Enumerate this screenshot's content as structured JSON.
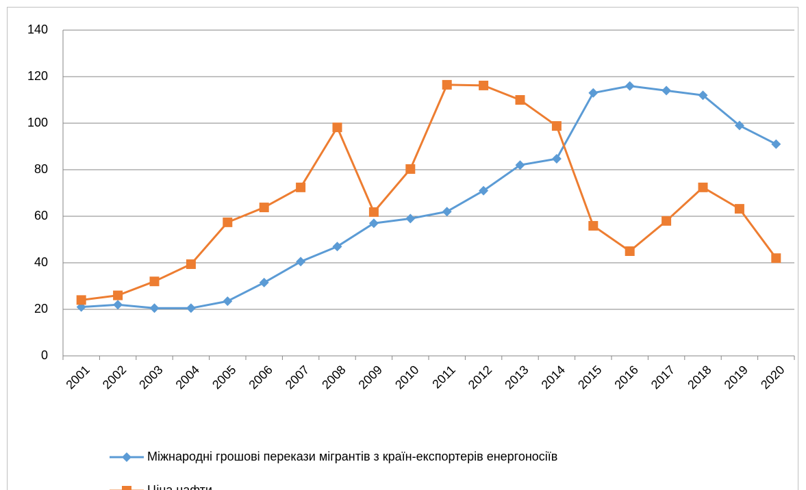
{
  "chart_data": {
    "type": "line",
    "categories": [
      "2001",
      "2002",
      "2003",
      "2004",
      "2005",
      "2006",
      "2007",
      "2008",
      "2009",
      "2010",
      "2011",
      "2012",
      "2013",
      "2014",
      "2015",
      "2016",
      "2017",
      "2018",
      "2019",
      "2020"
    ],
    "series": [
      {
        "name": "Міжнародні грошові перекази мігрантів з країн-експортерів енергоносіїв",
        "color": "#5b9bd5",
        "marker": "diamond",
        "values": [
          21,
          22,
          20.5,
          20.5,
          23.5,
          31.5,
          40.5,
          47,
          57,
          59,
          62,
          71,
          82,
          84.7,
          113,
          116,
          114,
          112,
          99,
          91
        ]
      },
      {
        "name": "Ціна нафти",
        "color": "#ed7d31",
        "marker": "square",
        "values": [
          24,
          26,
          32,
          39.4,
          57.4,
          63.8,
          72.4,
          98.2,
          61.8,
          80.3,
          116.5,
          116.2,
          110,
          98.8,
          55.9,
          45,
          58,
          72.4,
          63.2,
          42
        ]
      }
    ],
    "ylim": [
      0,
      140
    ],
    "yticks": [
      0,
      20,
      40,
      60,
      80,
      100,
      120,
      140
    ],
    "grid": true,
    "legend": "bottom"
  }
}
